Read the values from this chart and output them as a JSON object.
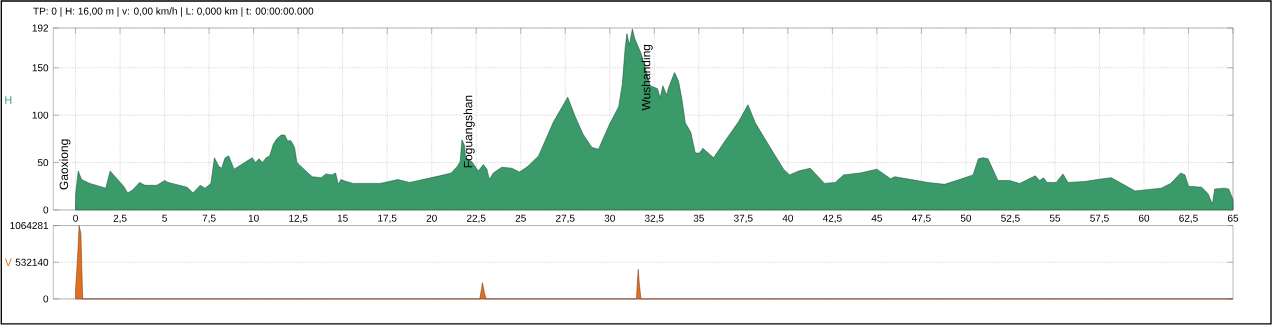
{
  "chart_data": [
    {
      "type": "area",
      "title": "TP: 0 | H: 16,00 m | v: 0,00 km/h | L: 0,000 km | t: 00:00:00.000",
      "ylabel": "H",
      "x": [
        0,
        0.15,
        0.34,
        0.8,
        1.7,
        1.94,
        2.7,
        2.93,
        3.2,
        3.6,
        3.9,
        4.57,
        5,
        5.2,
        6.26,
        6.6,
        7.0,
        7.27,
        7.6,
        7.8,
        8.04,
        8.2,
        8.4,
        8.6,
        8.9,
        9.92,
        10.1,
        10.3,
        10.5,
        10.7,
        10.9,
        11.1,
        11.3,
        11.55,
        11.75,
        11.9,
        12.1,
        12.3,
        12.43,
        13.05,
        13.3,
        13.8,
        14.05,
        14.4,
        14.6,
        14.76,
        14.9,
        15.2,
        15.6,
        17.1,
        18.1,
        18.76,
        20.45,
        21.1,
        21.44,
        21.6,
        21.7,
        21.84,
        21.9,
        22.25,
        22.62,
        22.9,
        23.1,
        23.24,
        23.46,
        23.93,
        24.5,
        24.93,
        25.4,
        26,
        26.84,
        27.64,
        28.05,
        28.5,
        29,
        29.37,
        29.55,
        30,
        30.5,
        30.7,
        30.86,
        30.96,
        31.1,
        31.27,
        31.4,
        31.76,
        32.04,
        32.27,
        32.68,
        32.83,
        32.98,
        33.2,
        33.3,
        33.64,
        33.86,
        34.05,
        34.24,
        34.55,
        34.8,
        35.04,
        35.23,
        35.83,
        36.48,
        37.23,
        37.76,
        38.17,
        39.2,
        39.76,
        40.1,
        40.6,
        41.26,
        42.06,
        42.66,
        43.13,
        44.07,
        45,
        45.77,
        46,
        46.93,
        47.87,
        48.8,
        49.64,
        50.4,
        50.7,
        50.96,
        51.24,
        51.8,
        52.45,
        53.02,
        53.9,
        54.14,
        54.36,
        54.55,
        55.07,
        55.45,
        55.73,
        56.67,
        57.7,
        58.17,
        59.5,
        60.97,
        61.5,
        62.06,
        62.3,
        62.5,
        63.24,
        63.6,
        63.84,
        63.97,
        64.53,
        64.76,
        65
      ],
      "series": [
        {
          "color": "#3a9a6a",
          "values": [
            16,
            41,
            32,
            28,
            23,
            41,
            25,
            18,
            21,
            29,
            26,
            26,
            31,
            29,
            24,
            18,
            26,
            23,
            28,
            55,
            46,
            44,
            55,
            57,
            43,
            55,
            50,
            54,
            50,
            55,
            57,
            69,
            75,
            79,
            79,
            73,
            73,
            66,
            50,
            39,
            35,
            34,
            38,
            37,
            39,
            27,
            32,
            30,
            28,
            28,
            32,
            29,
            36,
            39,
            46,
            51,
            74,
            68,
            55,
            51,
            41,
            48,
            43,
            32,
            39,
            45,
            44,
            40,
            46,
            57,
            93,
            119,
            99,
            80,
            66,
            64,
            72,
            91,
            109,
            132,
            170,
            186,
            174,
            191,
            181,
            165,
            147,
            131,
            128,
            118,
            131,
            121,
            129,
            145,
            136,
            117,
            92,
            82,
            60,
            60,
            65,
            55,
            73,
            93,
            111,
            92,
            60,
            43,
            37,
            41,
            44,
            28,
            29,
            37,
            39,
            43,
            33,
            35,
            32,
            29,
            27,
            32,
            37,
            54,
            55,
            54,
            31,
            31,
            28,
            36,
            31,
            34,
            29,
            29,
            38,
            29,
            30,
            33,
            34,
            20,
            23,
            28,
            39,
            37,
            25,
            24,
            17,
            6,
            22,
            23,
            22,
            11
          ]
        }
      ],
      "xlim": [
        -1.25,
        65
      ],
      "ylim": [
        0,
        192
      ],
      "yticks": [
        0,
        50,
        100,
        150,
        192
      ],
      "xticks": [
        0,
        {
          "value": 2.5,
          "label": "2,5"
        },
        5,
        {
          "value": 7.5,
          "label": "7,5"
        },
        10,
        {
          "value": 12.5,
          "label": "12,5"
        },
        15,
        {
          "value": 17.5,
          "label": "17,5"
        },
        20,
        {
          "value": 22.5,
          "label": "22,5"
        },
        25,
        {
          "value": 27.5,
          "label": "27,5"
        },
        30,
        {
          "value": 32.5,
          "label": "32,5"
        },
        35,
        {
          "value": 37.5,
          "label": "37,5"
        },
        40,
        {
          "value": 42.5,
          "label": "42,5"
        },
        45,
        {
          "value": 47.5,
          "label": "47,5"
        },
        50,
        {
          "value": 52.5,
          "label": "52,5"
        },
        55,
        {
          "value": 57.5,
          "label": "57,5"
        },
        60,
        {
          "value": 62.5,
          "label": "62,5"
        },
        65
      ],
      "grid": true,
      "annotations": [
        {
          "text": "Gaoxiong",
          "x": 0,
          "y": 16
        },
        {
          "text": "Foguangshan",
          "x": 22.7,
          "y": 39
        },
        {
          "text": "Wushanding",
          "x": 31.5,
          "y": 180
        }
      ]
    },
    {
      "type": "area",
      "ylabel": "V",
      "x": [
        0,
        0.05,
        0.1,
        0.15,
        0.2,
        0.3,
        0.4,
        22.7,
        22.8,
        22.85,
        22.95,
        23.05,
        31.5,
        31.55,
        31.6,
        31.65,
        31.75,
        65
      ],
      "series": [
        {
          "color": "#e07020",
          "values": [
            130000,
            330000,
            550000,
            780000,
            1064281,
            950000,
            0,
            0,
            150000,
            235000,
            100000,
            0,
            0,
            250000,
            429000,
            250000,
            0,
            0
          ]
        }
      ],
      "xlim": [
        -1.25,
        65
      ],
      "ylim": [
        0,
        1064281
      ],
      "yticks": [
        0,
        532140,
        1064281
      ],
      "grid": "y",
      "tick_labels": "y"
    }
  ]
}
